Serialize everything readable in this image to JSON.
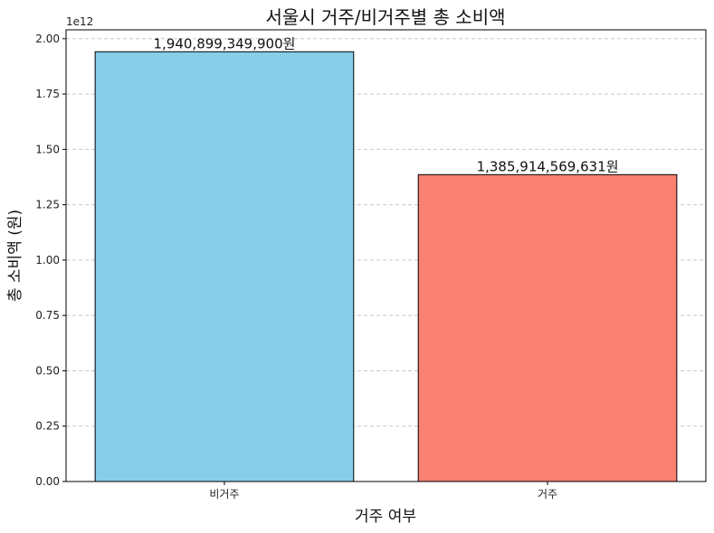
{
  "chart_data": {
    "type": "bar",
    "title": "서울시 거주/비거주별 총 소비액",
    "xlabel": "거주 여부",
    "ylabel": "총 소비액 (원)",
    "categories": [
      "비거주",
      "거주"
    ],
    "values": [
      1940899349900,
      1385914569631
    ],
    "value_labels": [
      "1,940,899,349,900원",
      "1,385,914,569,631원"
    ],
    "colors": [
      "#87CEEB",
      "#FA8072"
    ],
    "ylim": [
      0,
      2040000000000.0
    ],
    "y_ticks": [
      0,
      250000000000.0,
      500000000000.0,
      750000000000.0,
      1000000000000.0,
      1250000000000.0,
      1500000000000.0,
      1750000000000.0,
      2000000000000.0
    ],
    "y_tick_labels": [
      "0.00",
      "0.25",
      "0.50",
      "0.75",
      "1.00",
      "1.25",
      "1.50",
      "1.75",
      "2.00"
    ],
    "y_offset_label": "1e12",
    "grid": {
      "y": true,
      "style": "dashed"
    },
    "bar_edge_color": "#000000"
  }
}
